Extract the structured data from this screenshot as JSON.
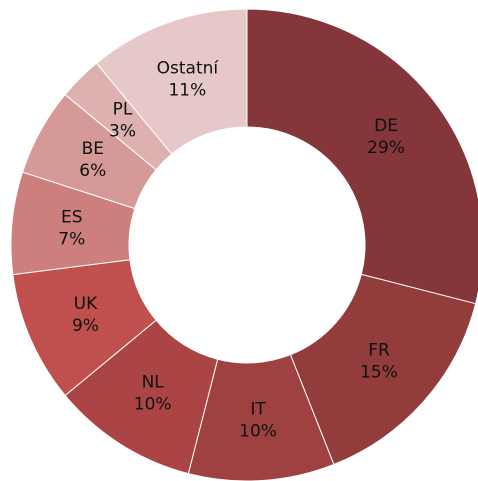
{
  "chart_data": {
    "type": "donut",
    "categories": [
      "DE",
      "FR",
      "IT",
      "NL",
      "UK",
      "ES",
      "BE",
      "PL",
      "Ostatní"
    ],
    "values": [
      29,
      15,
      10,
      10,
      9,
      7,
      6,
      3,
      11
    ],
    "value_labels": [
      "29%",
      "15%",
      "10%",
      "10%",
      "9%",
      "7%",
      "6%",
      "3%",
      "11%"
    ],
    "colors": [
      "#84363a",
      "#923c3c",
      "#a04141",
      "#ab4545",
      "#c0504d",
      "#cd7f7d",
      "#d59a98",
      "#dcb1b0",
      "#e6c8c8"
    ]
  }
}
